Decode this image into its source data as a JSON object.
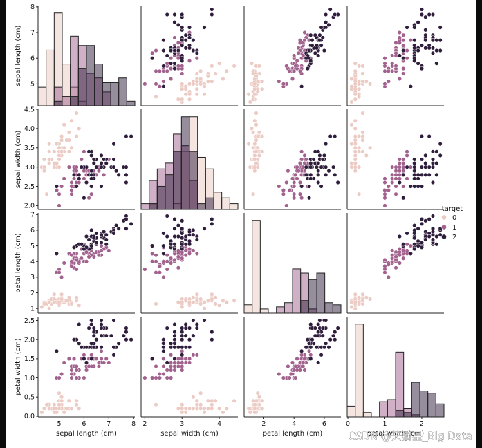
{
  "watermark": "CSDN @天摘星_Big Data",
  "chart_data": {
    "type": "scatter",
    "layout": "pairplot",
    "hue": "target",
    "variables": [
      "sepal length (cm)",
      "sepal width (cm)",
      "petal length (cm)",
      "petal width (cm)"
    ],
    "axis_labels": {
      "sepal length (cm)": "sepal length (cm)",
      "sepal width (cm)": "sepal width (cm)",
      "petal length (cm)": "petal length (cm)",
      "petal width (cm)": "petal width (cm)"
    },
    "ranges": {
      "sepal length (cm)": [
        4.15,
        8.05
      ],
      "sepal width (cm)": [
        1.9,
        4.5
      ],
      "petal length (cm)": [
        0.7,
        7.1
      ],
      "petal width (cm)": [
        -0.02,
        2.6
      ]
    },
    "ticks": {
      "sepal length (cm)": [
        5,
        6,
        7,
        8
      ],
      "sepal width (cm)": [
        2.0,
        2.5,
        3.0,
        3.5,
        4.0,
        4.5
      ],
      "petal length (cm)": [
        1,
        2,
        3,
        4,
        5,
        6,
        7
      ],
      "petal width (cm)": [
        0.0,
        0.5,
        1.0,
        1.5,
        2.0,
        2.5
      ]
    },
    "bottom_ticks": {
      "sepal length (cm)": [
        5,
        6,
        7,
        8
      ],
      "sepal width (cm)": [
        2,
        3,
        4
      ],
      "petal length (cm)": [
        2,
        4,
        6
      ],
      "petal width (cm)": [
        0,
        1,
        2
      ]
    },
    "left_ticks": {
      "sepal length (cm)": [
        5,
        6,
        7,
        8
      ],
      "sepal width (cm)": [
        2.0,
        2.5,
        3.0,
        3.5,
        4.0,
        4.5
      ],
      "petal length (cm)": [
        1,
        2,
        3,
        4,
        5,
        6,
        7
      ],
      "petal width (cm)": [
        0.0,
        0.5,
        1.0,
        1.5,
        2.0,
        2.5
      ]
    },
    "legend": {
      "title": "target",
      "entries": [
        {
          "label": "0",
          "color": "#ebcbc4"
        },
        {
          "label": "1",
          "color": "#a2628e"
        },
        {
          "label": "2",
          "color": "#2e1d3b"
        }
      ],
      "placement": "center-right"
    },
    "diag_hist_alpha": 0.5,
    "series": [
      {
        "name": "0",
        "color": "#ebcbc4",
        "points": [
          [
            5.1,
            3.5,
            1.4,
            0.2
          ],
          [
            4.9,
            3.0,
            1.4,
            0.2
          ],
          [
            4.7,
            3.2,
            1.3,
            0.2
          ],
          [
            4.6,
            3.1,
            1.5,
            0.2
          ],
          [
            5.0,
            3.6,
            1.4,
            0.2
          ],
          [
            5.4,
            3.9,
            1.7,
            0.4
          ],
          [
            4.6,
            3.4,
            1.4,
            0.3
          ],
          [
            5.0,
            3.4,
            1.5,
            0.2
          ],
          [
            4.4,
            2.9,
            1.4,
            0.2
          ],
          [
            4.9,
            3.1,
            1.5,
            0.1
          ],
          [
            5.4,
            3.7,
            1.5,
            0.2
          ],
          [
            4.8,
            3.4,
            1.6,
            0.2
          ],
          [
            4.8,
            3.0,
            1.4,
            0.1
          ],
          [
            4.3,
            3.0,
            1.1,
            0.1
          ],
          [
            5.8,
            4.0,
            1.2,
            0.2
          ],
          [
            5.7,
            4.4,
            1.5,
            0.4
          ],
          [
            5.4,
            3.9,
            1.3,
            0.4
          ],
          [
            5.1,
            3.5,
            1.4,
            0.3
          ],
          [
            5.7,
            3.8,
            1.7,
            0.3
          ],
          [
            5.1,
            3.8,
            1.5,
            0.3
          ],
          [
            5.4,
            3.4,
            1.7,
            0.2
          ],
          [
            5.1,
            3.7,
            1.5,
            0.4
          ],
          [
            4.6,
            3.6,
            1.0,
            0.2
          ],
          [
            5.1,
            3.3,
            1.7,
            0.5
          ],
          [
            4.8,
            3.4,
            1.9,
            0.2
          ],
          [
            5.0,
            3.0,
            1.6,
            0.2
          ],
          [
            5.0,
            3.4,
            1.6,
            0.4
          ],
          [
            5.2,
            3.5,
            1.5,
            0.2
          ],
          [
            5.2,
            3.4,
            1.4,
            0.2
          ],
          [
            4.7,
            3.2,
            1.6,
            0.2
          ],
          [
            4.8,
            3.1,
            1.6,
            0.2
          ],
          [
            5.4,
            3.4,
            1.5,
            0.4
          ],
          [
            5.2,
            4.1,
            1.5,
            0.1
          ],
          [
            5.5,
            4.2,
            1.4,
            0.2
          ],
          [
            4.9,
            3.1,
            1.5,
            0.2
          ],
          [
            5.0,
            3.2,
            1.2,
            0.2
          ],
          [
            5.5,
            3.5,
            1.3,
            0.2
          ],
          [
            4.9,
            3.6,
            1.4,
            0.1
          ],
          [
            4.4,
            3.0,
            1.3,
            0.2
          ],
          [
            5.1,
            3.4,
            1.5,
            0.2
          ],
          [
            5.0,
            3.5,
            1.3,
            0.3
          ],
          [
            4.5,
            2.3,
            1.3,
            0.3
          ],
          [
            4.4,
            3.2,
            1.3,
            0.2
          ],
          [
            5.0,
            3.5,
            1.6,
            0.6
          ],
          [
            5.1,
            3.8,
            1.9,
            0.4
          ],
          [
            4.8,
            3.0,
            1.4,
            0.3
          ],
          [
            5.1,
            3.8,
            1.6,
            0.2
          ],
          [
            4.6,
            3.2,
            1.4,
            0.2
          ],
          [
            5.3,
            3.7,
            1.5,
            0.2
          ],
          [
            5.0,
            3.3,
            1.4,
            0.2
          ]
        ]
      },
      {
        "name": "1",
        "color": "#a2628e",
        "points": [
          [
            7.0,
            3.2,
            4.7,
            1.4
          ],
          [
            6.4,
            3.2,
            4.5,
            1.5
          ],
          [
            6.9,
            3.1,
            4.9,
            1.5
          ],
          [
            5.5,
            2.3,
            4.0,
            1.3
          ],
          [
            6.5,
            2.8,
            4.6,
            1.5
          ],
          [
            5.7,
            2.8,
            4.5,
            1.3
          ],
          [
            6.3,
            3.3,
            4.7,
            1.6
          ],
          [
            4.9,
            2.4,
            3.3,
            1.0
          ],
          [
            6.6,
            2.9,
            4.6,
            1.3
          ],
          [
            5.2,
            2.7,
            3.9,
            1.4
          ],
          [
            5.0,
            2.0,
            3.5,
            1.0
          ],
          [
            5.9,
            3.0,
            4.2,
            1.5
          ],
          [
            6.0,
            2.2,
            4.0,
            1.0
          ],
          [
            6.1,
            2.9,
            4.7,
            1.4
          ],
          [
            5.6,
            2.9,
            3.6,
            1.3
          ],
          [
            6.7,
            3.1,
            4.4,
            1.4
          ],
          [
            5.6,
            3.0,
            4.5,
            1.5
          ],
          [
            5.8,
            2.7,
            4.1,
            1.0
          ],
          [
            6.2,
            2.2,
            4.5,
            1.5
          ],
          [
            5.6,
            2.5,
            3.9,
            1.1
          ],
          [
            5.9,
            3.2,
            4.8,
            1.8
          ],
          [
            6.1,
            2.8,
            4.0,
            1.3
          ],
          [
            6.3,
            2.5,
            4.9,
            1.5
          ],
          [
            6.1,
            2.8,
            4.7,
            1.2
          ],
          [
            6.4,
            2.9,
            4.3,
            1.3
          ],
          [
            6.6,
            3.0,
            4.4,
            1.4
          ],
          [
            6.8,
            2.8,
            4.8,
            1.4
          ],
          [
            6.7,
            3.0,
            5.0,
            1.7
          ],
          [
            6.0,
            2.9,
            4.5,
            1.5
          ],
          [
            5.7,
            2.6,
            3.5,
            1.0
          ],
          [
            5.5,
            2.4,
            3.8,
            1.1
          ],
          [
            5.5,
            2.4,
            3.7,
            1.0
          ],
          [
            5.8,
            2.7,
            3.9,
            1.2
          ],
          [
            6.0,
            2.7,
            5.1,
            1.6
          ],
          [
            5.4,
            3.0,
            4.5,
            1.5
          ],
          [
            6.0,
            3.4,
            4.5,
            1.6
          ],
          [
            6.7,
            3.1,
            4.7,
            1.5
          ],
          [
            6.3,
            2.3,
            4.4,
            1.3
          ],
          [
            5.6,
            3.0,
            4.1,
            1.3
          ],
          [
            5.5,
            2.5,
            4.0,
            1.3
          ],
          [
            5.5,
            2.6,
            4.4,
            1.2
          ],
          [
            6.1,
            3.0,
            4.6,
            1.4
          ],
          [
            5.8,
            2.6,
            4.0,
            1.2
          ],
          [
            5.0,
            2.3,
            3.3,
            1.0
          ],
          [
            5.6,
            2.7,
            4.2,
            1.3
          ],
          [
            5.7,
            3.0,
            4.2,
            1.2
          ],
          [
            5.7,
            2.9,
            4.2,
            1.3
          ],
          [
            6.2,
            2.9,
            4.3,
            1.3
          ],
          [
            5.1,
            2.5,
            3.0,
            1.1
          ],
          [
            5.7,
            2.8,
            4.1,
            1.3
          ]
        ]
      },
      {
        "name": "2",
        "color": "#2e1d3b",
        "points": [
          [
            6.3,
            3.3,
            6.0,
            2.5
          ],
          [
            5.8,
            2.7,
            5.1,
            1.9
          ],
          [
            7.1,
            3.0,
            5.9,
            2.1
          ],
          [
            6.3,
            2.9,
            5.6,
            1.8
          ],
          [
            6.5,
            3.0,
            5.8,
            2.2
          ],
          [
            7.6,
            3.0,
            6.6,
            2.1
          ],
          [
            4.9,
            2.5,
            4.5,
            1.7
          ],
          [
            7.3,
            2.9,
            6.3,
            1.8
          ],
          [
            6.7,
            2.5,
            5.8,
            1.8
          ],
          [
            7.2,
            3.6,
            6.1,
            2.5
          ],
          [
            6.5,
            3.2,
            5.1,
            2.0
          ],
          [
            6.4,
            2.7,
            5.3,
            1.9
          ],
          [
            6.8,
            3.0,
            5.5,
            2.1
          ],
          [
            5.7,
            2.5,
            5.0,
            2.0
          ],
          [
            5.8,
            2.8,
            5.1,
            2.4
          ],
          [
            6.4,
            3.2,
            5.3,
            2.3
          ],
          [
            6.5,
            3.0,
            5.5,
            1.8
          ],
          [
            7.7,
            3.8,
            6.7,
            2.2
          ],
          [
            7.7,
            2.6,
            6.9,
            2.3
          ],
          [
            6.0,
            2.2,
            5.0,
            1.5
          ],
          [
            6.9,
            3.2,
            5.7,
            2.3
          ],
          [
            5.6,
            2.8,
            4.9,
            2.0
          ],
          [
            7.7,
            2.8,
            6.7,
            2.0
          ],
          [
            6.3,
            2.7,
            4.9,
            1.8
          ],
          [
            6.7,
            3.3,
            5.7,
            2.1
          ],
          [
            7.2,
            3.2,
            6.0,
            1.8
          ],
          [
            6.2,
            2.8,
            4.8,
            1.8
          ],
          [
            6.1,
            3.0,
            4.9,
            1.8
          ],
          [
            6.4,
            2.8,
            5.6,
            2.1
          ],
          [
            7.2,
            3.0,
            5.8,
            1.6
          ],
          [
            7.4,
            2.8,
            6.1,
            1.9
          ],
          [
            7.9,
            3.8,
            6.4,
            2.0
          ],
          [
            6.4,
            2.8,
            5.6,
            2.2
          ],
          [
            6.3,
            2.8,
            5.1,
            1.5
          ],
          [
            6.1,
            2.6,
            5.6,
            1.4
          ],
          [
            7.7,
            3.0,
            6.1,
            2.3
          ],
          [
            6.3,
            3.4,
            5.6,
            2.4
          ],
          [
            6.4,
            3.1,
            5.5,
            1.8
          ],
          [
            6.0,
            3.0,
            4.8,
            1.8
          ],
          [
            6.9,
            3.1,
            5.4,
            2.1
          ],
          [
            6.7,
            3.1,
            5.6,
            2.4
          ],
          [
            6.9,
            3.1,
            5.1,
            2.3
          ],
          [
            5.8,
            2.7,
            5.1,
            1.9
          ],
          [
            6.8,
            3.2,
            5.9,
            2.3
          ],
          [
            6.7,
            3.3,
            5.7,
            2.5
          ],
          [
            6.7,
            3.0,
            5.2,
            2.3
          ],
          [
            6.3,
            2.5,
            5.0,
            1.9
          ],
          [
            6.5,
            3.0,
            5.2,
            2.0
          ],
          [
            6.2,
            3.4,
            5.4,
            2.3
          ],
          [
            5.9,
            3.0,
            5.1,
            1.8
          ]
        ]
      }
    ]
  }
}
